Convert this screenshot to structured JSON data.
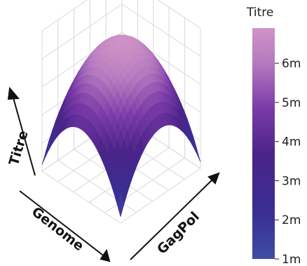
{
  "chart_data": {
    "type": "surface",
    "title": "",
    "xlabel": "Genome",
    "ylabel": "GagPol",
    "zlabel": "Titre",
    "colorbar": {
      "title": "Titre",
      "ticks": [
        "1m",
        "2m",
        "3m",
        "4m",
        "5m",
        "6m"
      ],
      "range": [
        1,
        6.9
      ],
      "colors": [
        "#3d4ea5",
        "#3a2e93",
        "#4a2488",
        "#7a3aa8",
        "#b57abf",
        "#cf93c7"
      ]
    },
    "surface": {
      "shape": "dome",
      "description_values": {
        "peak_titre": 6.8,
        "corner_min_titre": 1.0
      },
      "grid_x": [
        -1,
        -0.5,
        0,
        0.5,
        1
      ],
      "grid_y": [
        -1,
        -0.5,
        0,
        0.5,
        1
      ]
    },
    "grid": true
  }
}
